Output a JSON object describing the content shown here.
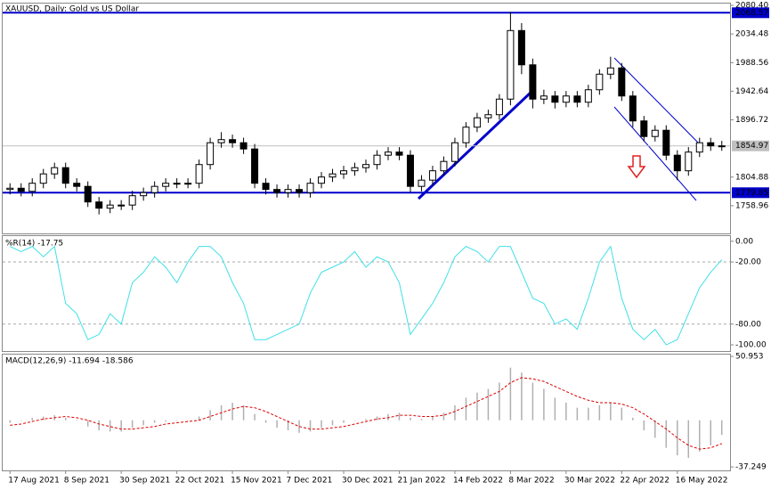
{
  "chart_data": [
    {
      "type": "candlestick",
      "title": "XAUUSD, Daily: Gold vs US Dollar",
      "open": [
        1785,
        1787,
        1782,
        1795,
        1810,
        1820,
        1795,
        1790,
        1765,
        1755,
        1760,
        1760,
        1775,
        1780,
        1790,
        1795,
        1795,
        1795,
        1825,
        1860,
        1865,
        1860,
        1850,
        1795,
        1785,
        1780,
        1785,
        1780,
        1795,
        1805,
        1810,
        1815,
        1820,
        1825,
        1840,
        1845,
        1840,
        1790,
        1800,
        1815,
        1830,
        1860,
        1885,
        1900,
        1905,
        1930,
        2040,
        1985,
        1930,
        1935,
        1925,
        1935,
        1925,
        1945,
        1970,
        1980,
        1935,
        1895,
        1870,
        1880,
        1840,
        1815,
        1845,
        1860,
        1855
      ],
      "high": [
        1795,
        1795,
        1803,
        1818,
        1828,
        1828,
        1803,
        1798,
        1773,
        1768,
        1768,
        1783,
        1788,
        1798,
        1803,
        1803,
        1803,
        1833,
        1868,
        1877,
        1873,
        1868,
        1858,
        1803,
        1793,
        1793,
        1793,
        1803,
        1813,
        1818,
        1823,
        1828,
        1833,
        1848,
        1853,
        1853,
        1848,
        1808,
        1823,
        1838,
        1868,
        1893,
        1908,
        1913,
        1938,
        2070,
        2052,
        1995,
        1945,
        1943,
        1943,
        1943,
        1953,
        1978,
        1998,
        1988,
        1943,
        1903,
        1888,
        1888,
        1848,
        1853,
        1868,
        1868,
        1863
      ],
      "low": [
        1777,
        1774,
        1774,
        1787,
        1802,
        1787,
        1782,
        1757,
        1745,
        1747,
        1752,
        1752,
        1767,
        1772,
        1782,
        1787,
        1787,
        1787,
        1817,
        1852,
        1852,
        1842,
        1787,
        1777,
        1772,
        1772,
        1772,
        1772,
        1787,
        1797,
        1802,
        1807,
        1812,
        1817,
        1832,
        1832,
        1780,
        1782,
        1792,
        1807,
        1822,
        1852,
        1877,
        1892,
        1897,
        1920,
        1970,
        1915,
        1922,
        1915,
        1917,
        1917,
        1917,
        1937,
        1962,
        1927,
        1885,
        1862,
        1862,
        1832,
        1800,
        1807,
        1837,
        1847,
        1847
      ],
      "close": [
        1787,
        1782,
        1795,
        1810,
        1820,
        1795,
        1790,
        1765,
        1755,
        1760,
        1760,
        1775,
        1780,
        1790,
        1795,
        1795,
        1795,
        1825,
        1860,
        1865,
        1860,
        1850,
        1795,
        1785,
        1780,
        1785,
        1780,
        1795,
        1805,
        1810,
        1815,
        1820,
        1825,
        1840,
        1845,
        1840,
        1790,
        1800,
        1815,
        1830,
        1860,
        1885,
        1900,
        1905,
        1930,
        2040,
        1985,
        1930,
        1935,
        1925,
        1935,
        1925,
        1945,
        1970,
        1980,
        1935,
        1895,
        1870,
        1880,
        1840,
        1815,
        1845,
        1860,
        1855,
        1855
      ],
      "ylim": [
        1714.5,
        2083.3
      ],
      "yticks": [
        {
          "value": 2080.4,
          "label": "2080.40"
        },
        2034.48,
        1988.56,
        1942.64,
        1896.72,
        1804.88,
        1758.96
      ],
      "levels": [
        {
          "value": 2068.57,
          "color": "#0000cc"
        },
        {
          "value": 1779.85,
          "color": "#0000cc"
        }
      ],
      "current": {
        "value": 1854.97,
        "color": "#c0c0c0"
      }
    },
    {
      "type": "line",
      "title": "%R(14) -17.75",
      "color": "#40e0e8",
      "values": [
        -5,
        -10,
        -5,
        -15,
        -5,
        -60,
        -70,
        -95,
        -90,
        -70,
        -80,
        -40,
        -30,
        -15,
        -25,
        -40,
        -20,
        -5,
        -5,
        -15,
        -40,
        -60,
        -95,
        -95,
        -90,
        -85,
        -80,
        -50,
        -30,
        -25,
        -20,
        -10,
        -25,
        -15,
        -20,
        -40,
        -90,
        -75,
        -60,
        -40,
        -15,
        -5,
        -10,
        -20,
        -5,
        -5,
        -30,
        -55,
        -60,
        -80,
        -75,
        -85,
        -55,
        -20,
        -5,
        -55,
        -85,
        -95,
        -85,
        -100,
        -95,
        -70,
        -45,
        -30,
        -17.75
      ],
      "ylim": [
        -106,
        5
      ],
      "yticks": [
        {
          "value": 0,
          "label": "0.00"
        },
        {
          "value": -20,
          "label": "-20.00"
        },
        {
          "value": -80,
          "label": "-80.00"
        },
        {
          "value": -100,
          "label": "-100.00"
        }
      ],
      "levels": [
        -20,
        -80
      ]
    },
    {
      "type": "macd",
      "title": "MACD(12,26,9) -11.694 -18.586",
      "categories": [
        "17 Aug 2021",
        null,
        null,
        null,
        null,
        "8 Sep 2021",
        null,
        null,
        null,
        null,
        "30 Sep 2021",
        null,
        null,
        null,
        null,
        "22 Oct 2021",
        null,
        null,
        null,
        null,
        "15 Nov 2021",
        null,
        null,
        null,
        null,
        "7 Dec 2021",
        null,
        null,
        null,
        null,
        "30 Dec 2021",
        null,
        null,
        null,
        null,
        "21 Jan 2022",
        null,
        null,
        null,
        null,
        "14 Feb 2022",
        null,
        null,
        null,
        null,
        "8 Mar 2022",
        null,
        null,
        null,
        null,
        "30 Mar 2022",
        null,
        null,
        null,
        null,
        "22 Apr 2022",
        null,
        null,
        null,
        null,
        "16 May 2022",
        null,
        null,
        null,
        null
      ],
      "values": [
        -2,
        0,
        2,
        3,
        4,
        2,
        0,
        -5,
        -8,
        -9,
        -9,
        -6,
        -4,
        -2,
        -1,
        0,
        0,
        3,
        8,
        12,
        14,
        12,
        5,
        -2,
        -6,
        -8,
        -10,
        -9,
        -6,
        -4,
        -2,
        0,
        1,
        3,
        5,
        6,
        2,
        1,
        3,
        6,
        12,
        18,
        22,
        25,
        30,
        42,
        38,
        30,
        25,
        18,
        14,
        10,
        10,
        12,
        14,
        10,
        2,
        -8,
        -14,
        -22,
        -28,
        -30,
        -25,
        -20,
        -11.694
      ],
      "signal": [
        -4,
        -3,
        -1,
        1,
        2,
        3,
        2,
        0,
        -3,
        -5,
        -7,
        -7,
        -6,
        -5,
        -3,
        -2,
        -1,
        0,
        3,
        6,
        9,
        11,
        10,
        7,
        3,
        -1,
        -5,
        -7,
        -7,
        -6,
        -5,
        -3,
        -1,
        1,
        2,
        4,
        4,
        3,
        3,
        4,
        7,
        11,
        15,
        19,
        23,
        30,
        34,
        33,
        31,
        27,
        23,
        19,
        16,
        14,
        14,
        13,
        10,
        5,
        -1,
        -7,
        -14,
        -20,
        -23,
        -22,
        -18.586
      ],
      "color": "#b0b0b0",
      "signal_color": "#dd0000",
      "ylim": [
        -40,
        52.4
      ],
      "yticks": [
        50.953,
        -37.249
      ]
    }
  ]
}
